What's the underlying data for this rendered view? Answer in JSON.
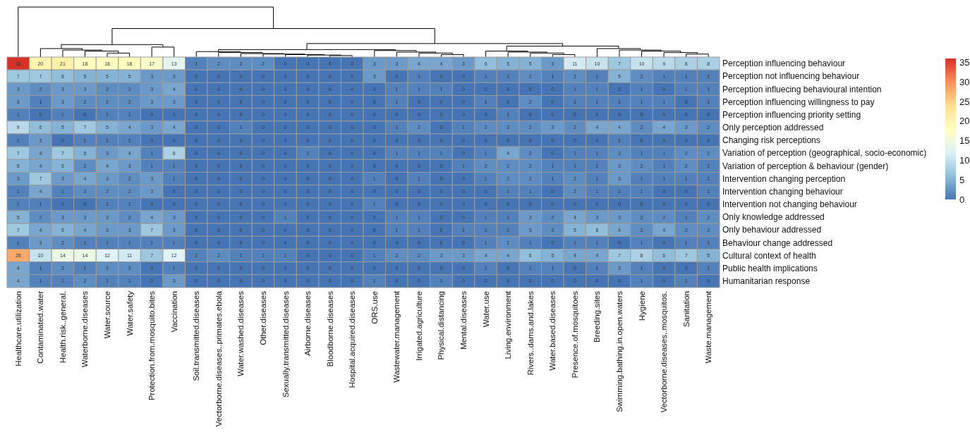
{
  "chart_data": {
    "type": "heatmap",
    "categories": [
      "Healthcare.utilization",
      "Contaminated.water",
      "Health.risk..general.",
      "Waterborne.diseases",
      "Water.source",
      "Water.safety",
      "Protection.from.mosquito.bites",
      "Vaccination",
      "Soil.transmitted.diseases",
      "Vectorborne.diseases..primates.ebola",
      "Water.washed.diseases",
      "Other.diseases",
      "Sexually.transmitted.diseases",
      "Airborne.diseases",
      "Bloodborne.diseases",
      "Hospital.acquired.diseases",
      "ORS.use",
      "Wastewater.management",
      "Irrigated.agriculture",
      "Physical.distancing",
      "Mental.diseases",
      "Water.use",
      "Living.environment",
      "Rivers..dams.and.lakes",
      "Water.based.diseases",
      "Presence.of.mosquitoes",
      "Breeding.sites",
      "Swimming.bathing.in.open.waters",
      "Hygiene",
      "Vectorborne.diseases..mosquitos.",
      "Sanitation",
      "Waste.management"
    ],
    "y_categories": [
      "Perception influencing behaviour",
      "Perception not influencing behaviour",
      "Perception influecing behavioural intention",
      "Perception influencing willingness to pay",
      "Perception influencing priority setting",
      "Only perception addressed",
      "Changing risk perceptions",
      "Variation of perception (geographical, socio-economic)",
      "Variation of perception & behaviour (gender)",
      "Intervention changing perception",
      "Intervention changing behaviour",
      "Intervention not changing behaviour",
      "Only knowledge addressed",
      "Only behaviour addressed",
      "Behaviour change addressed",
      "Cultural context of health",
      "Public health implications",
      "Humanitarian response"
    ],
    "cells": [
      [
        36,
        20,
        21,
        18,
        18,
        18,
        17,
        13,
        1,
        2,
        2,
        2,
        0,
        0,
        0,
        0,
        3,
        3,
        4,
        4,
        3,
        6,
        5,
        5,
        3,
        11,
        10,
        7,
        10,
        9,
        8,
        8
      ],
      [
        7,
        7,
        6,
        5,
        5,
        5,
        3,
        3,
        0,
        0,
        0,
        0,
        0,
        0,
        0,
        0,
        3,
        0,
        1,
        0,
        0,
        1,
        1,
        2,
        1,
        2,
        1,
        5,
        2,
        1,
        1,
        1
      ],
      [
        3,
        2,
        3,
        3,
        2,
        2,
        3,
        4,
        0,
        0,
        0,
        0,
        0,
        0,
        0,
        0,
        0,
        1,
        1,
        1,
        0,
        0,
        0,
        0,
        0,
        1,
        1,
        0,
        1,
        0,
        1,
        1
      ],
      [
        3,
        1,
        3,
        2,
        2,
        2,
        3,
        3,
        0,
        0,
        0,
        0,
        0,
        0,
        0,
        0,
        0,
        1,
        0,
        0,
        0,
        1,
        0,
        2,
        0,
        1,
        1,
        1,
        1,
        1,
        0,
        1
      ],
      [
        1,
        0,
        1,
        0,
        1,
        1,
        0,
        0,
        0,
        0,
        0,
        0,
        0,
        0,
        0,
        0,
        0,
        0,
        0,
        0,
        0,
        0,
        1,
        0,
        0,
        0,
        0,
        0,
        0,
        0,
        0,
        0
      ],
      [
        9,
        6,
        5,
        7,
        5,
        4,
        3,
        4,
        0,
        0,
        1,
        0,
        0,
        0,
        0,
        0,
        0,
        1,
        2,
        0,
        1,
        2,
        2,
        2,
        3,
        2,
        4,
        4,
        2,
        4,
        3,
        2
      ],
      [
        1,
        3,
        0,
        1,
        1,
        1,
        0,
        0,
        0,
        0,
        0,
        0,
        0,
        0,
        0,
        0,
        0,
        0,
        0,
        0,
        0,
        0,
        0,
        0,
        0,
        0,
        0,
        1,
        0,
        0,
        0,
        0
      ],
      [
        7,
        4,
        7,
        5,
        3,
        4,
        1,
        8,
        0,
        0,
        0,
        0,
        0,
        1,
        0,
        0,
        0,
        1,
        1,
        1,
        0,
        1,
        4,
        2,
        0,
        1,
        1,
        2,
        1,
        1,
        2,
        2
      ],
      [
        5,
        4,
        5,
        2,
        4,
        3,
        1,
        1,
        0,
        0,
        0,
        0,
        0,
        0,
        0,
        0,
        0,
        0,
        0,
        0,
        1,
        2,
        2,
        2,
        1,
        1,
        1,
        3,
        2,
        1,
        2,
        1
      ],
      [
        3,
        7,
        3,
        4,
        3,
        2,
        3,
        1,
        0,
        0,
        0,
        0,
        0,
        0,
        0,
        0,
        1,
        0,
        1,
        0,
        0,
        1,
        2,
        2,
        1,
        2,
        1,
        3,
        1,
        1,
        1,
        1
      ],
      [
        1,
        4,
        1,
        2,
        2,
        2,
        3,
        0,
        0,
        0,
        0,
        0,
        0,
        0,
        0,
        0,
        0,
        0,
        0,
        0,
        0,
        0,
        1,
        1,
        0,
        2,
        1,
        1,
        1,
        0,
        0,
        1
      ],
      [
        1,
        1,
        0,
        0,
        1,
        1,
        0,
        0,
        0,
        0,
        0,
        0,
        0,
        0,
        0,
        0,
        1,
        0,
        0,
        0,
        0,
        0,
        0,
        0,
        0,
        0,
        0,
        0,
        0,
        0,
        0,
        0
      ],
      [
        5,
        2,
        3,
        3,
        3,
        2,
        4,
        3,
        0,
        0,
        0,
        0,
        1,
        0,
        0,
        0,
        0,
        1,
        1,
        0,
        0,
        1,
        1,
        3,
        2,
        4,
        3,
        3,
        2,
        2,
        1,
        2
      ],
      [
        7,
        4,
        5,
        4,
        3,
        3,
        7,
        3,
        0,
        0,
        0,
        0,
        0,
        0,
        0,
        0,
        0,
        1,
        1,
        0,
        1,
        1,
        1,
        3,
        2,
        5,
        6,
        4,
        2,
        4,
        2,
        2
      ],
      [
        1,
        3,
        2,
        1,
        1,
        1,
        1,
        1,
        0,
        0,
        0,
        0,
        0,
        0,
        0,
        0,
        0,
        0,
        0,
        0,
        0,
        1,
        2,
        1,
        0,
        1,
        1,
        0,
        1,
        0,
        1,
        1
      ],
      [
        28,
        10,
        14,
        14,
        12,
        11,
        7,
        12,
        1,
        2,
        1,
        1,
        1,
        0,
        0,
        0,
        1,
        2,
        2,
        3,
        3,
        4,
        4,
        6,
        5,
        4,
        4,
        7,
        8,
        6,
        7,
        5
      ],
      [
        4,
        1,
        2,
        1,
        2,
        2,
        0,
        1,
        0,
        0,
        0,
        0,
        0,
        0,
        0,
        0,
        0,
        0,
        0,
        0,
        0,
        1,
        0,
        1,
        1,
        0,
        1,
        3,
        1,
        0,
        0,
        1
      ],
      [
        4,
        1,
        1,
        2,
        1,
        1,
        0,
        3,
        0,
        0,
        0,
        0,
        0,
        0,
        0,
        0,
        1,
        0,
        0,
        1,
        0,
        0,
        0,
        0,
        0,
        0,
        0,
        0,
        1,
        0,
        1,
        0
      ]
    ],
    "clim": [
      0,
      36
    ],
    "cticks": [
      0,
      5,
      10,
      15,
      20,
      25,
      30,
      35
    ],
    "data_labels": true
  }
}
